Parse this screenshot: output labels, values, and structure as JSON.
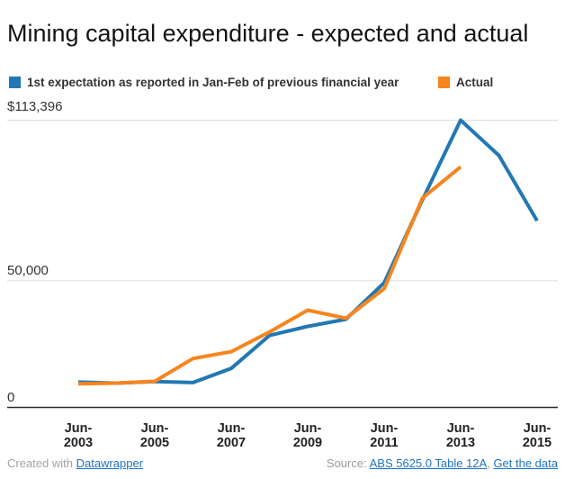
{
  "chart_data": {
    "type": "line",
    "title": "Mining capital expenditure - expected and actual",
    "x": [
      "Jun-2003",
      "Jun-2004",
      "Jun-2005",
      "Jun-2006",
      "Jun-2007",
      "Jun-2008",
      "Jun-2009",
      "Jun-2010",
      "Jun-2011",
      "Jun-2012",
      "Jun-2013",
      "Jun-2014",
      "Jun-2015"
    ],
    "x_tick_labels": [
      "Jun-2003",
      "Jun-2005",
      "Jun-2007",
      "Jun-2009",
      "Jun-2011",
      "Jun-2013",
      "Jun-2015"
    ],
    "ylim": [
      0,
      113396
    ],
    "gridline_values": [
      50000,
      113396
    ],
    "baseline_value": 0,
    "grid_on": true,
    "legend_position": "top",
    "ylabel": "",
    "xlabel": "",
    "series": [
      {
        "name": "1st expectation as reported in Jan-Feb of previous financial year",
        "color": "#2178b4",
        "values": [
          10000,
          9600,
          10200,
          9800,
          15400,
          28400,
          32000,
          34800,
          49200,
          81900,
          113396,
          99500,
          73700
        ]
      },
      {
        "name": "Actual",
        "color": "#f6851f",
        "values": [
          9300,
          9600,
          10300,
          19300,
          22000,
          29800,
          38400,
          35200,
          46900,
          82600,
          95000,
          null,
          null
        ]
      }
    ]
  },
  "axis": {
    "y_top_label": "$113,396",
    "y_mid_label": "50,000",
    "y_zero_label": "0"
  },
  "footer": {
    "created_prefix": "Created with ",
    "created_link": "Datawrapper",
    "source_prefix": "Source: ",
    "source_link": "ABS 5625.0 Table 12A",
    "separator": ", ",
    "data_link": "Get the data"
  },
  "colors": {
    "expected_blue": "#2178b4",
    "actual_orange": "#f6851f",
    "gridline": "#dcdcdc",
    "baseline": "#2b2b2b",
    "link_blue": "#1e73be",
    "muted_gray": "#a3a3a3"
  }
}
